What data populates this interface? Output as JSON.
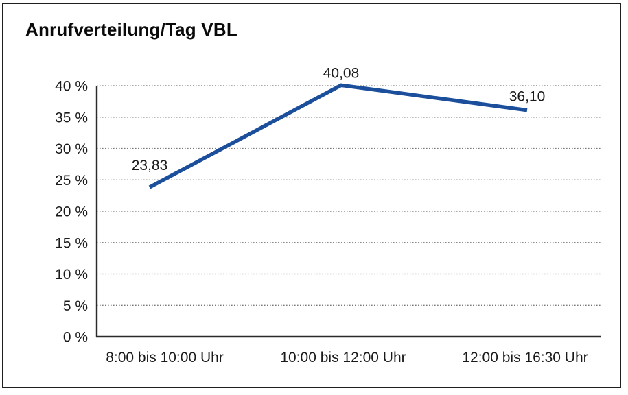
{
  "title": "Anrufverteilung/Tag VBL",
  "accent_color": "#1b4e9b",
  "chart_data": {
    "type": "line",
    "title": "Anrufverteilung/Tag VBL",
    "categories": [
      "8:00 bis 10:00 Uhr",
      "10:00 bis 12:00 Uhr",
      "12:00 bis 16:30 Uhr"
    ],
    "series": [
      {
        "name": "Anrufverteilung",
        "values": [
          23.83,
          40.08,
          36.1
        ],
        "point_labels": [
          "23,83",
          "40,08",
          "36,10"
        ],
        "color": "#1b4e9b"
      }
    ],
    "xlabel": "",
    "ylabel": "",
    "ylim": [
      0,
      40
    ],
    "ytick_step": 5,
    "yticks": [
      "0 %",
      "5 %",
      "10 %",
      "15 %",
      "20 %",
      "25 %",
      "30 %",
      "35 %",
      "40 %"
    ],
    "grid": "horizontal-dotted",
    "legend_position": "none",
    "markers": "none"
  }
}
